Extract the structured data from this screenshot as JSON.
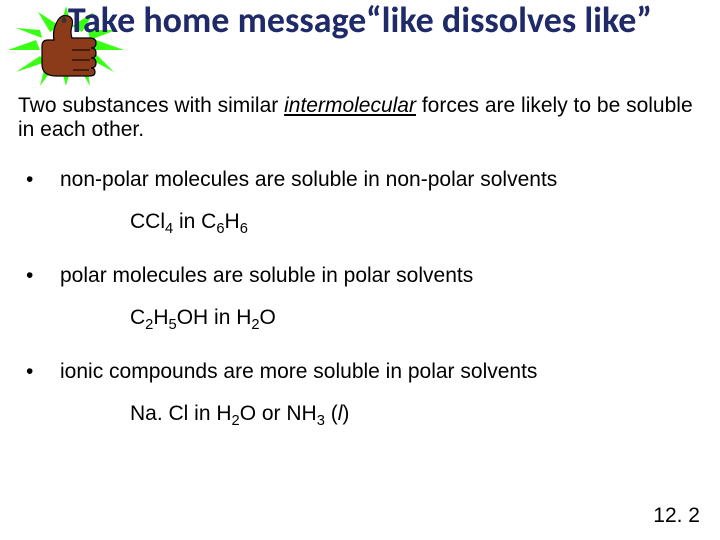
{
  "title": "Take home message“like dissolves like”",
  "intro_pre": "Two substances with similar ",
  "intro_u": "intermolecular",
  "intro_post": " forces are likely to be soluble in each other.",
  "bullets": [
    {
      "text": "non-polar molecules are soluble in non-polar solvents",
      "example_html": "CCl<sub>4</sub> in C<sub>6</sub>H<sub>6</sub>"
    },
    {
      "text": "polar molecules are soluble in polar solvents",
      "example_html": "C<sub>2</sub>H<sub>5</sub>OH in H<sub>2</sub>O"
    },
    {
      "text": "ionic compounds are more soluble in polar solvents",
      "example_html": "Na. Cl in H<sub>2</sub>O or NH<sub>3</sub> (<span class=\"italic\">l</span>)"
    }
  ],
  "footer": "12. 2",
  "icon": {
    "burst_color": "#39ff14",
    "hand_fill": "#8b3a1a",
    "hand_stroke": "#000000",
    "nail_color": "#333333"
  }
}
